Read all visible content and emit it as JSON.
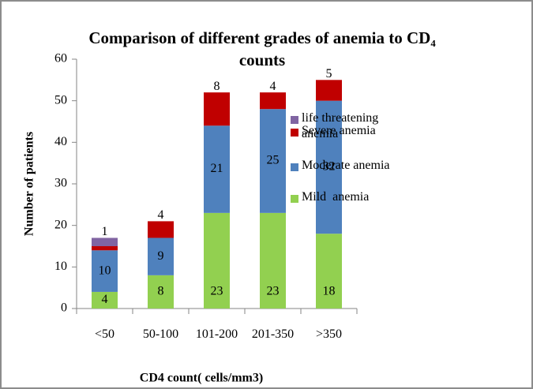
{
  "chart_data": {
    "type": "stacked_bar",
    "title": "Comparison of different grades of anemia to CD₄ counts",
    "x_label": "CD4 count( cells/mm3)",
    "y_label": "Number of patients",
    "categories": [
      "<50",
      "50-100",
      "101-200",
      "201-350",
      ">350"
    ],
    "series": [
      {
        "name": "Mild  anemia",
        "color": "#92d050",
        "values": [
          4,
          8,
          23,
          23,
          18
        ]
      },
      {
        "name": "Moderate anemia",
        "color": "#4f81bd",
        "values": [
          10,
          9,
          21,
          25,
          32
        ]
      },
      {
        "name": "Severe anemia",
        "color": "#c00000",
        "values": [
          1,
          4,
          8,
          4,
          5
        ]
      },
      {
        "name": "life threatening anemia",
        "color": "#8064a2",
        "values": [
          2,
          0,
          0,
          0,
          0
        ]
      }
    ],
    "ylim": [
      0,
      60
    ],
    "yticks": [
      0,
      10,
      20,
      30,
      40,
      50,
      60
    ]
  }
}
